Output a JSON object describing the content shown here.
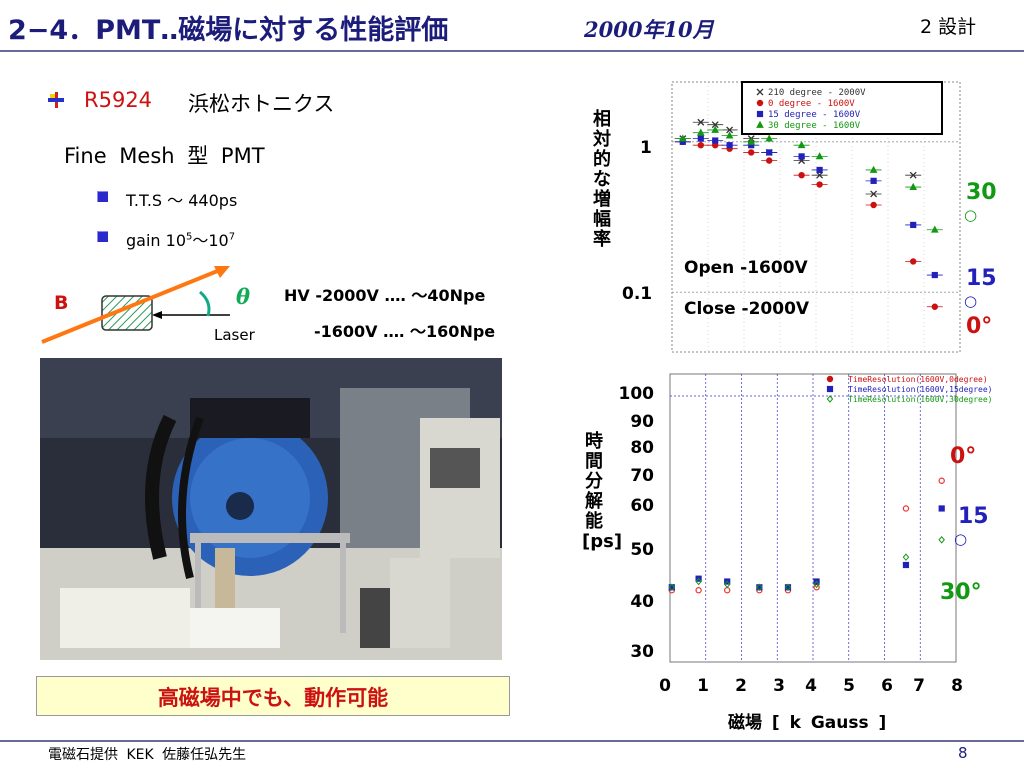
{
  "header": {
    "title": "2−4．PMT‥磁場に対する性能評価",
    "date": "2000年10月",
    "section": "2  設計"
  },
  "content": {
    "model": "R5924",
    "maker": "浜松ホトニクス",
    "type_line": "Fine  Mesh  型  PMT",
    "tts": "T.T.S 〜 440ps",
    "gain_prefix": "gain 10",
    "gain_exp1": "5",
    "gain_mid": "〜10",
    "gain_exp2": "7"
  },
  "diagram": {
    "b_label": "B",
    "theta": "θ",
    "laser": "Laser",
    "hv_line1": "HV -2000V  ‥‥  〜40Npe",
    "hv_line2": "-1600V  ‥‥  〜160Npe"
  },
  "caption": "高磁場中でも、動作可能",
  "footer": {
    "credit": "電磁石提供   KEK  佐藤任弘先生",
    "page": "8"
  },
  "colors": {
    "title": "#1c1c7a",
    "red": "#cc1111",
    "blue": "#2222bb",
    "green": "#119911",
    "caption_bg": "#ffffcc"
  },
  "chart_data": [
    {
      "type": "scatter",
      "ylabel": "相対的な増幅率",
      "yscale": "log",
      "ylim": [
        0.04,
        2.5
      ],
      "xlim": [
        0,
        8
      ],
      "y_ticks": [
        "1",
        "0.1"
      ],
      "legend": [
        "210 degree  -  2000V",
        "0 degree  -  1600V",
        "15 degree  -  1600V",
        "30 degree  -  1600V"
      ],
      "legend_position": "top-right",
      "annotations": [
        "Open  -1600V",
        "Close  -2000V"
      ],
      "side_labels": [
        "30",
        "15",
        "0°"
      ],
      "series": [
        {
          "color": "#333333",
          "marker": "x",
          "x": [
            0.3,
            0.8,
            1.2,
            1.6,
            2.2,
            2.7,
            3.6,
            4.1,
            5.6,
            6.7
          ],
          "y": [
            1.05,
            1.35,
            1.3,
            1.2,
            1.05,
            0.85,
            0.75,
            0.6,
            0.45,
            0.6
          ]
        },
        {
          "color": "#cc1111",
          "marker": "o",
          "x": [
            0.3,
            0.8,
            1.2,
            1.6,
            2.2,
            2.7,
            3.6,
            4.1,
            5.6,
            6.7,
            7.3
          ],
          "y": [
            1.0,
            0.95,
            0.95,
            0.9,
            0.85,
            0.75,
            0.6,
            0.52,
            0.38,
            0.16,
            0.08
          ]
        },
        {
          "color": "#2222bb",
          "marker": "s",
          "x": [
            0.3,
            0.8,
            1.2,
            1.6,
            2.2,
            2.7,
            3.6,
            4.1,
            5.6,
            6.7,
            7.3
          ],
          "y": [
            1.0,
            1.05,
            1.02,
            0.95,
            0.95,
            0.85,
            0.8,
            0.65,
            0.55,
            0.28,
            0.13
          ]
        },
        {
          "color": "#119911",
          "marker": "^",
          "x": [
            0.3,
            0.8,
            1.2,
            1.6,
            2.2,
            2.7,
            3.6,
            4.1,
            5.6,
            6.7,
            7.3
          ],
          "y": [
            1.05,
            1.15,
            1.2,
            1.1,
            1.0,
            1.05,
            0.95,
            0.8,
            0.65,
            0.5,
            0.26
          ]
        }
      ]
    },
    {
      "type": "scatter",
      "ylabel": "時間分解能  [ps]",
      "xlabel": "磁場    [ k Gauss ]",
      "yscale": "log",
      "ylim": [
        30,
        100
      ],
      "xlim": [
        0,
        8
      ],
      "y_ticks": [
        "100",
        "90",
        "80",
        "70",
        "60",
        "50",
        "40",
        "30"
      ],
      "x_ticks": [
        "0",
        "1",
        "2",
        "3",
        "4",
        "5",
        "6",
        "7",
        "8"
      ],
      "legend": [
        "TimeResolution(1600V,0degree)",
        "TimeResolution(1600V,15degree)",
        "TimeResolution(1600V,30degree)"
      ],
      "legend_position": "top-right",
      "side_labels": [
        "0°",
        "15",
        "○",
        "30°"
      ],
      "series": [
        {
          "color": "#cc1111",
          "marker": "o",
          "x": [
            0.05,
            0.8,
            1.6,
            2.5,
            3.3,
            4.1,
            6.6,
            7.6
          ],
          "y": [
            40.5,
            40.5,
            40.5,
            40.5,
            40.5,
            41,
            57,
            64
          ]
        },
        {
          "color": "#2222bb",
          "marker": "s",
          "x": [
            0.05,
            0.8,
            1.6,
            2.5,
            3.3,
            4.1,
            6.6,
            7.6
          ],
          "y": [
            41,
            42.5,
            42,
            41,
            41,
            42,
            45,
            57
          ]
        },
        {
          "color": "#119911",
          "marker": "d",
          "x": [
            0.05,
            0.8,
            1.6,
            2.5,
            3.3,
            4.1,
            6.6,
            7.6
          ],
          "y": [
            41,
            42,
            41.5,
            41,
            41,
            41.5,
            46.5,
            50
          ]
        }
      ]
    }
  ]
}
